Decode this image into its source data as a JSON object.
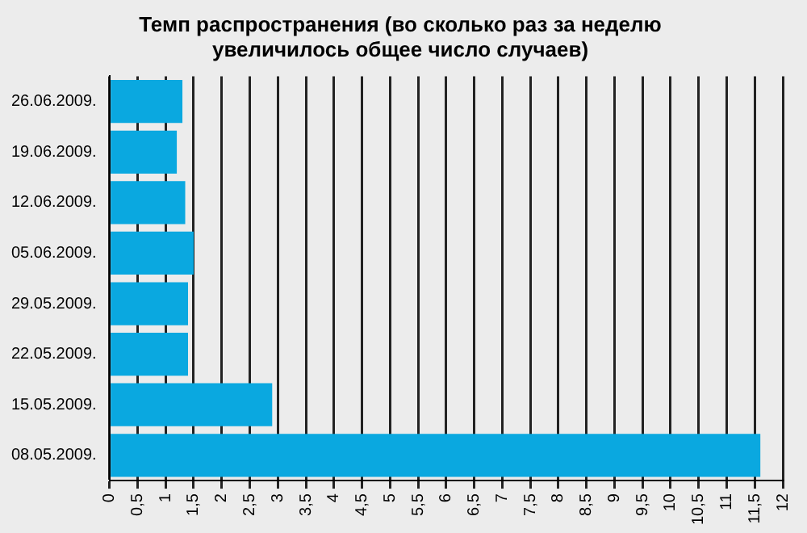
{
  "chart_data": {
    "type": "bar",
    "orientation": "horizontal",
    "title": "Темп распространения (во сколько раз за неделю\nувеличилось общее число случаев)",
    "categories": [
      "26.06.2009.",
      "19.06.2009.",
      "12.06.2009.",
      "05.06.2009.",
      "29.05.2009.",
      "22.05.2009.",
      "15.05.2009.",
      "08.05.2009."
    ],
    "values": [
      1.3,
      1.2,
      1.35,
      1.5,
      1.4,
      1.4,
      2.9,
      11.6
    ],
    "color": "#0aa8e0",
    "xlim": [
      0,
      12
    ],
    "xticks": [
      0,
      {
        "value": 0.5,
        "label": "0,5"
      },
      1,
      {
        "value": 1.5,
        "label": "1,5"
      },
      2,
      {
        "value": 2.5,
        "label": "2,5"
      },
      3,
      {
        "value": 3.5,
        "label": "3,5"
      },
      4,
      {
        "value": 4.5,
        "label": "4,5"
      },
      5,
      {
        "value": 5.5,
        "label": "5,5"
      },
      6,
      {
        "value": 6.5,
        "label": "6,5"
      },
      7,
      {
        "value": 7.5,
        "label": "7,5"
      },
      8,
      {
        "value": 8.5,
        "label": "8,5"
      },
      9,
      {
        "value": 9.5,
        "label": "9,5"
      },
      10,
      {
        "value": 10.5,
        "label": "10,5"
      },
      11,
      {
        "value": 11.5,
        "label": "11,5"
      },
      12
    ],
    "grid": "x"
  }
}
